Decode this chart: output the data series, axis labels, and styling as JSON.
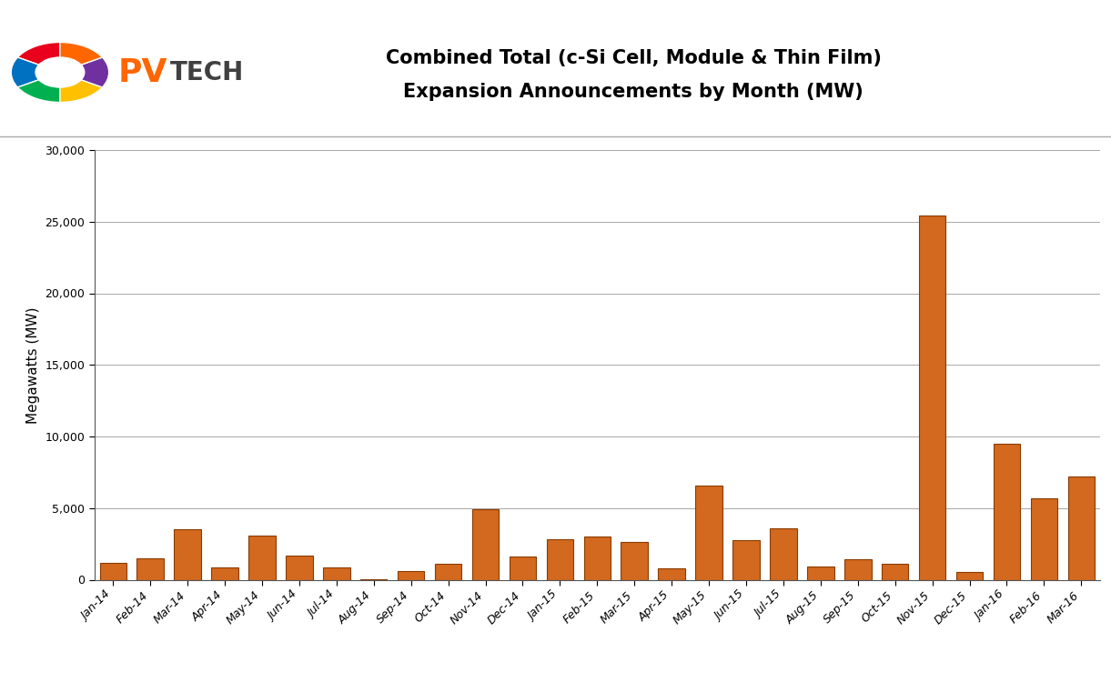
{
  "categories": [
    "Jan-14",
    "Feb-14",
    "Mar-14",
    "Apr-14",
    "May-14",
    "Jun-14",
    "Jul-14",
    "Aug-14",
    "Sep-14",
    "Oct-14",
    "Nov-14",
    "Dec-14",
    "Jan-15",
    "Feb-15",
    "Mar-15",
    "Apr-15",
    "May-15",
    "Jun-15",
    "Jul-15",
    "Aug-15",
    "Sep-15",
    "Oct-15",
    "Nov-15",
    "Dec-15",
    "Jan-16",
    "Feb-16",
    "Mar-16"
  ],
  "values": [
    1200,
    1500,
    3500,
    850,
    3100,
    1700,
    850,
    50,
    600,
    1100,
    4950,
    1600,
    2800,
    3000,
    2650,
    800,
    6600,
    2750,
    3600,
    950,
    1400,
    1100,
    25400,
    550,
    9500,
    5700,
    7200
  ],
  "bar_color": "#D2691E",
  "bar_edge_color": "#8B3A00",
  "title_line1": "Combined Total (c-Si Cell, Module & Thin Film)",
  "title_line2": "Expansion Announcements by Month (MW)",
  "ylabel": "Megawatts (MW)",
  "ylim": [
    0,
    30000
  ],
  "yticks": [
    0,
    5000,
    10000,
    15000,
    20000,
    25000,
    30000
  ],
  "background_color": "#FFFFFF",
  "grid_color": "#999999",
  "title_fontsize": 15,
  "axis_fontsize": 11,
  "tick_fontsize": 9,
  "logo_colors": [
    "#E8001C",
    "#0070C0",
    "#00B050",
    "#FFC000",
    "#7030A0",
    "#FF6600"
  ],
  "header_line_color": "#AAAAAA",
  "pv_color": "#FF6600",
  "tech_color": "#404040"
}
